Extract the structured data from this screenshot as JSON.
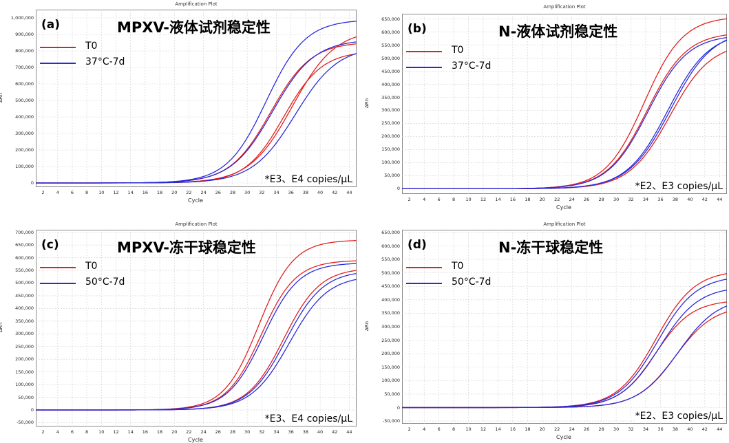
{
  "chart_data": [
    {
      "type": "line",
      "panel_label": "(a)",
      "plot_title": "Amplification Plot",
      "title": "MPXV-液体试剂稳定性",
      "xlabel": "Cycle",
      "ylabel": "ΔRn",
      "xlim": [
        1,
        45
      ],
      "ylim": [
        -25000,
        1050000
      ],
      "yticks": [
        0,
        100000,
        200000,
        300000,
        400000,
        500000,
        600000,
        700000,
        800000,
        900000,
        1000000
      ],
      "ytick_labels": [
        "0",
        "100,000",
        "200,000",
        "300,000",
        "400,000",
        "500,000",
        "600,000",
        "700,000",
        "800,000",
        "900,000",
        "1,000,000"
      ],
      "xticks": [
        2,
        4,
        6,
        8,
        10,
        12,
        14,
        16,
        18,
        20,
        22,
        24,
        26,
        28,
        30,
        32,
        34,
        36,
        38,
        40,
        42,
        44
      ],
      "legend_placement": "top-left",
      "annotation": "*E3、E4 copies/μL",
      "series": [
        {
          "name": "T0",
          "color": "#e02020",
          "curves": [
            {
              "plateau": 855000,
              "ct": 33.2,
              "k": 0.36
            },
            {
              "plateau": 930000,
              "ct": 36.2,
              "k": 0.34
            },
            {
              "plateau": 800000,
              "ct": 35.0,
              "k": 0.38
            }
          ]
        },
        {
          "name": "37°C-7d",
          "color": "#2b2bd6",
          "curves": [
            {
              "plateau": 990000,
              "ct": 32.6,
              "k": 0.37
            },
            {
              "plateau": 870000,
              "ct": 33.5,
              "k": 0.35
            },
            {
              "plateau": 830000,
              "ct": 36.6,
              "k": 0.34
            }
          ]
        }
      ]
    },
    {
      "type": "line",
      "panel_label": "(b)",
      "plot_title": "Amplification Plot",
      "title": "N-液体试剂稳定性",
      "xlabel": "Cycle",
      "ylabel": "ΔRn",
      "xlim": [
        1,
        45
      ],
      "ylim": [
        -20000,
        670000
      ],
      "yticks": [
        0,
        50000,
        100000,
        150000,
        200000,
        250000,
        300000,
        350000,
        400000,
        450000,
        500000,
        550000,
        600000,
        650000
      ],
      "ytick_labels": [
        "0",
        "50,000",
        "100,000",
        "150,000",
        "200,000",
        "250,000",
        "300,000",
        "350,000",
        "400,000",
        "450,000",
        "500,000",
        "550,000",
        "600,000",
        "650,000"
      ],
      "xticks": [
        2,
        4,
        6,
        8,
        10,
        12,
        14,
        16,
        18,
        20,
        22,
        24,
        26,
        28,
        30,
        32,
        34,
        36,
        38,
        40,
        42,
        44
      ],
      "legend_placement": "top-left",
      "annotation": "*E2、E3 copies/μL",
      "series": [
        {
          "name": "T0",
          "color": "#e02020",
          "curves": [
            {
              "plateau": 660000,
              "ct": 33.8,
              "k": 0.38
            },
            {
              "plateau": 560000,
              "ct": 37.3,
              "k": 0.36
            },
            {
              "plateau": 600000,
              "ct": 34.2,
              "k": 0.37
            }
          ]
        },
        {
          "name": "37°C-7d",
          "color": "#2b2bd6",
          "curves": [
            {
              "plateau": 590000,
              "ct": 34.3,
              "k": 0.37
            },
            {
              "plateau": 600000,
              "ct": 37.0,
              "k": 0.36
            },
            {
              "plateau": 610000,
              "ct": 37.4,
              "k": 0.35
            }
          ]
        }
      ]
    },
    {
      "type": "line",
      "panel_label": "(c)",
      "plot_title": "Amplification Plot",
      "title": "MPXV-冻干球稳定性",
      "xlabel": "Cycle",
      "ylabel": "ΔRn",
      "xlim": [
        1,
        45
      ],
      "ylim": [
        -65000,
        710000
      ],
      "yticks": [
        -50000,
        0,
        50000,
        100000,
        150000,
        200000,
        250000,
        300000,
        350000,
        400000,
        450000,
        500000,
        550000,
        600000,
        650000,
        700000
      ],
      "ytick_labels": [
        "-50,000",
        "0",
        "50,000",
        "100,000",
        "150,000",
        "200,000",
        "250,000",
        "300,000",
        "350,000",
        "400,000",
        "450,000",
        "500,000",
        "550,000",
        "600,000",
        "650,000",
        "700,000"
      ],
      "xticks": [
        2,
        4,
        6,
        8,
        10,
        12,
        14,
        16,
        18,
        20,
        22,
        24,
        26,
        28,
        30,
        32,
        34,
        36,
        38,
        40,
        42,
        44
      ],
      "legend_placement": "top-left",
      "annotation": "*E3、E4 copies/μL",
      "series": [
        {
          "name": "T0",
          "color": "#e02020",
          "curves": [
            {
              "plateau": 670000,
              "ct": 31.6,
              "k": 0.42
            },
            {
              "plateau": 590000,
              "ct": 31.9,
              "k": 0.42
            },
            {
              "plateau": 560000,
              "ct": 35.0,
              "k": 0.4
            }
          ]
        },
        {
          "name": "50°C-7d",
          "color": "#2b2bd6",
          "curves": [
            {
              "plateau": 580000,
              "ct": 32.2,
              "k": 0.41
            },
            {
              "plateau": 550000,
              "ct": 35.3,
              "k": 0.39
            },
            {
              "plateau": 530000,
              "ct": 35.8,
              "k": 0.38
            }
          ]
        }
      ]
    },
    {
      "type": "line",
      "panel_label": "(d)",
      "plot_title": "Amplification Plot",
      "title": "N-冻干球稳定性",
      "xlabel": "Cycle",
      "ylabel": "ΔRn",
      "xlim": [
        1,
        45
      ],
      "ylim": [
        -60000,
        660000
      ],
      "yticks": [
        -50000,
        0,
        50000,
        100000,
        150000,
        200000,
        250000,
        300000,
        350000,
        400000,
        450000,
        500000,
        550000,
        600000,
        650000
      ],
      "ytick_labels": [
        "-50,000",
        "0",
        "50,000",
        "100,000",
        "150,000",
        "200,000",
        "250,000",
        "300,000",
        "350,000",
        "400,000",
        "450,000",
        "500,000",
        "550,000",
        "600,000",
        "650,000"
      ],
      "xticks": [
        2,
        4,
        6,
        8,
        10,
        12,
        14,
        16,
        18,
        20,
        22,
        24,
        26,
        28,
        30,
        32,
        34,
        36,
        38,
        40,
        42,
        44
      ],
      "legend_placement": "top-left",
      "annotation": "*E2、E3 copies/μL",
      "series": [
        {
          "name": "T0",
          "color": "#e02020",
          "curves": [
            {
              "plateau": 510000,
              "ct": 35.4,
              "k": 0.38
            },
            {
              "plateau": 400000,
              "ct": 35.3,
              "k": 0.4
            },
            {
              "plateau": 380000,
              "ct": 38.0,
              "k": 0.38
            }
          ]
        },
        {
          "name": "50°C-7d",
          "color": "#2b2bd6",
          "curves": [
            {
              "plateau": 490000,
              "ct": 35.6,
              "k": 0.38
            },
            {
              "plateau": 450000,
              "ct": 35.9,
              "k": 0.38
            },
            {
              "plateau": 410000,
              "ct": 38.4,
              "k": 0.37
            }
          ]
        }
      ]
    }
  ]
}
